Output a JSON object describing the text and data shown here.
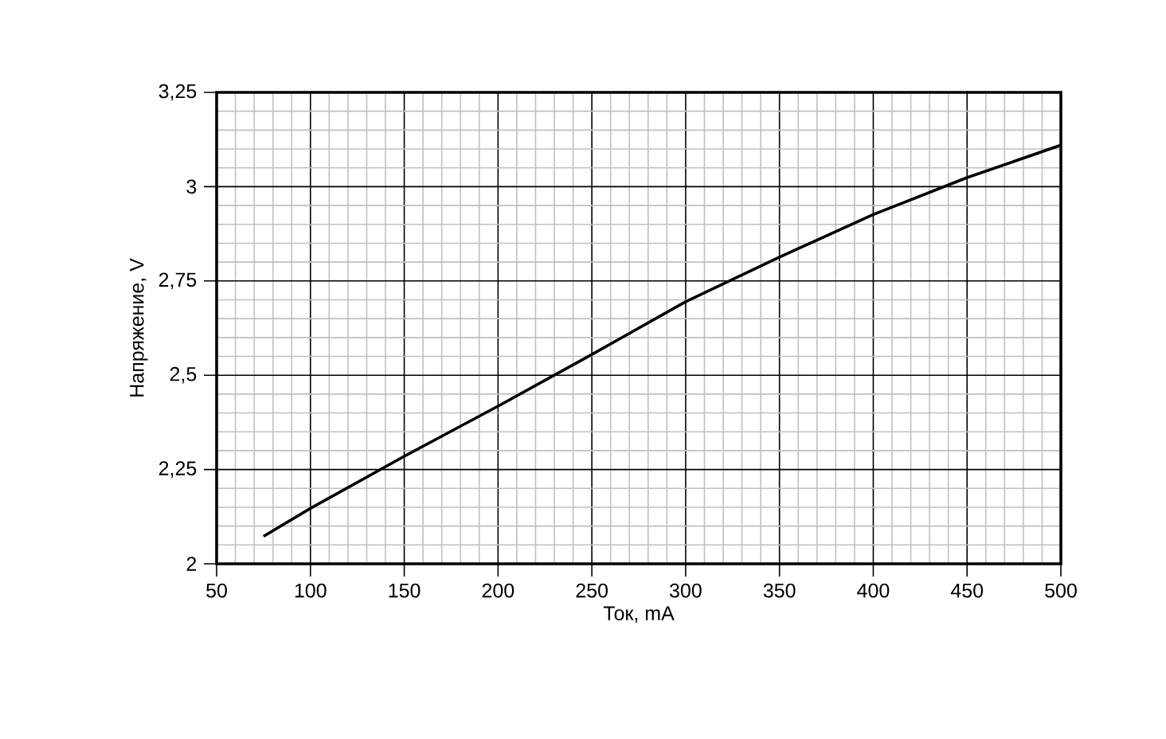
{
  "chart_data": {
    "type": "line",
    "xlabel": "Ток, mA",
    "ylabel": "Напряжение, V",
    "x": [
      75,
      100,
      150,
      200,
      250,
      300,
      350,
      400,
      450,
      500
    ],
    "series": [
      {
        "color": "#000000",
        "values": [
          2.073,
          2.147,
          2.285,
          2.418,
          2.555,
          2.695,
          2.813,
          2.926,
          3.024,
          3.11
        ]
      }
    ],
    "xlim": [
      50,
      500
    ],
    "xticks": [
      50,
      100,
      150,
      200,
      250,
      300,
      350,
      400,
      450,
      500
    ],
    "ylim": [
      2,
      3.25
    ],
    "yticks": [
      2,
      {
        "value": 2.25,
        "label": "2,25"
      },
      {
        "value": 2.5,
        "label": "2,5"
      },
      {
        "value": 2.75,
        "label": "2,75"
      },
      3,
      {
        "value": 3.25,
        "label": "3,25"
      }
    ],
    "grid": true,
    "marker": "none",
    "line_style": "solid"
  }
}
